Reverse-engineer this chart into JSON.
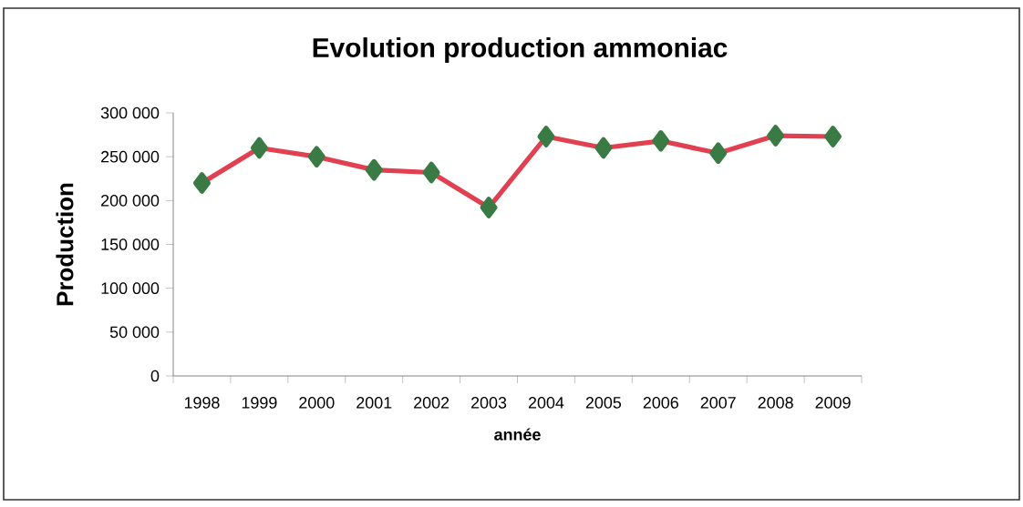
{
  "chart_data": {
    "type": "line",
    "title": "Evolution production ammoniac",
    "xlabel": "année",
    "ylabel": "Production",
    "categories": [
      "1998",
      "1999",
      "2000",
      "2001",
      "2002",
      "2003",
      "2004",
      "2005",
      "2006",
      "2007",
      "2008",
      "2009"
    ],
    "series": [
      {
        "color": "#e0404f",
        "values": [
          220000,
          260000,
          250000,
          235000,
          232000,
          192000,
          273000,
          260000,
          268000,
          254000,
          274000,
          273000
        ]
      }
    ],
    "marker": "diamond",
    "line_style": "solid",
    "ylim": [
      0,
      300000
    ],
    "yticks": [
      {
        "value": 0,
        "label": "0"
      },
      {
        "value": 50000,
        "label": "50 000"
      },
      {
        "value": 100000,
        "label": "100 000"
      },
      {
        "value": 150000,
        "label": "150 000"
      },
      {
        "value": 200000,
        "label": "200 000"
      },
      {
        "value": 250000,
        "label": "250 000"
      },
      {
        "value": 300000,
        "label": "300 000"
      }
    ],
    "grid": false
  }
}
